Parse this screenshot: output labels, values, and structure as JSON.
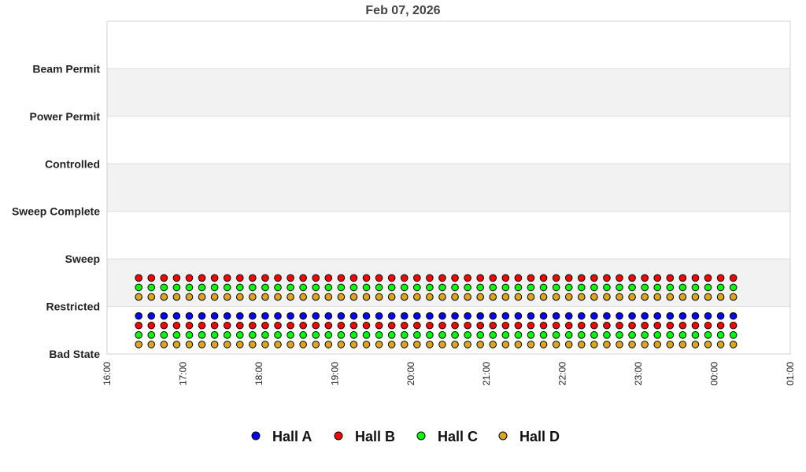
{
  "chart_data": {
    "type": "scatter",
    "title": "Feb 07, 2026",
    "xlabel": "",
    "ylabel": "",
    "x_ticks": [
      "16:00",
      "17:00",
      "18:00",
      "19:00",
      "20:00",
      "21:00",
      "22:00",
      "23:00",
      "00:00",
      "01:00"
    ],
    "xlim": [
      "16:00",
      "01:00"
    ],
    "y_categories": [
      "Bad State",
      "Restricted",
      "Sweep",
      "Sweep Complete",
      "Controlled",
      "Power Permit",
      "Beam Permit"
    ],
    "grid": true,
    "alternating_bands": true,
    "legend_position": "bottom",
    "x_start": "16:25",
    "x_end": "00:15",
    "x_interval_minutes": 10,
    "series": [
      {
        "name": "Hall A",
        "color": "#0000ff",
        "states": [
          "Bad State"
        ]
      },
      {
        "name": "Hall B",
        "color": "#ff0000",
        "states": [
          "Bad State",
          "Restricted"
        ]
      },
      {
        "name": "Hall C",
        "color": "#00ff00",
        "states": [
          "Bad State",
          "Restricted"
        ]
      },
      {
        "name": "Hall D",
        "color": "#daa520",
        "states": [
          "Bad State",
          "Restricted"
        ]
      }
    ]
  }
}
